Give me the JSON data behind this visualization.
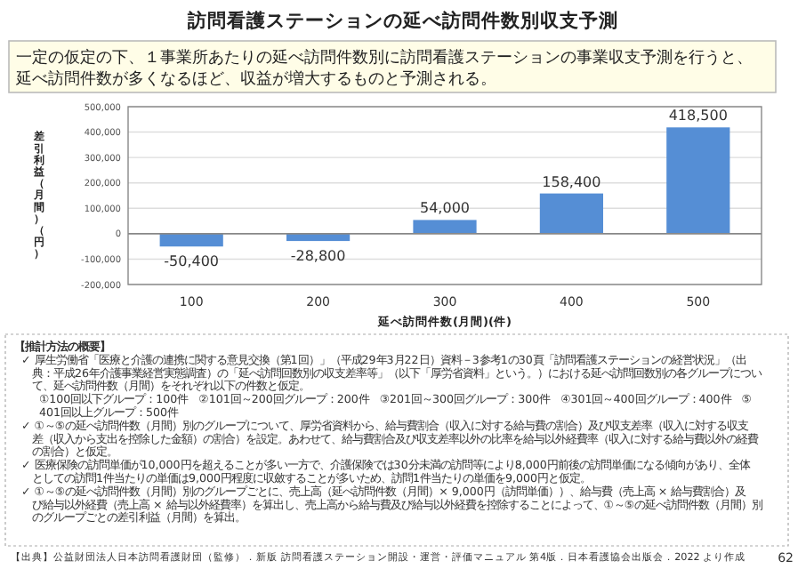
{
  "chart_data": {
    "type": "bar",
    "title": "訪問看護ステーションの延べ訪問件数別収支予測",
    "subtitle": "一定の仮定の下、１事業所あたりの延べ訪問件数別に訪問看護ステーションの事業収支予測を行うと、延べ訪問件数が多くなるほど、収益が増大するものと予測される。",
    "xlabel": "延べ訪問件数(月間)(件)",
    "ylabel": "差引利益（月間）（円）",
    "categories": [
      "100",
      "200",
      "300",
      "400",
      "500"
    ],
    "values": [
      -50400,
      -28800,
      54000,
      158400,
      418500
    ],
    "color": "#558ed5",
    "value_labels": [
      "-50,400",
      "-28,800",
      "54,000",
      "158,400",
      "418,500"
    ],
    "ylim": [
      -200000,
      500000
    ],
    "yticks": [
      {
        "value": -200000,
        "label": "-200,000"
      },
      {
        "value": -100000,
        "label": "-100,000"
      },
      0,
      {
        "value": 100000,
        "label": "100,000"
      },
      {
        "value": 200000,
        "label": "200,000"
      },
      {
        "value": 300000,
        "label": "300,000"
      },
      {
        "value": 400000,
        "label": "400,000"
      },
      {
        "value": 500000,
        "label": "500,000"
      }
    ],
    "grid": "y",
    "annotations": [
      "【推計方法の概要】",
      "✓ 厚生労働省「医療と介護の連携に関する意見交換（第1回）」（平成29年3月22日）資料－3参考1の30頁「訪問看護ステーションの経営状況」（出典：平成26年介護事業経営実態調査）の「延べ訪問回数別の収支差率等」（以下「厚労省資料」という。）における延べ訪問回数別の各グループについて、延べ訪問件数（月間）をそれぞれ以下の件数と仮定。",
      "①100回以下グループ：100件　②101回～200回グループ：200件　③201回～300回グループ：300件　④301回～400回グループ：400件　⑤401回以上グループ：500件",
      "✓ ①～⑤の延べ訪問件数（月間）別のグループについて、厚労省資料から、給与費割合（収入に対する給与費の割合）及び収支差率（収入に対する収支差（収入から支出を控除した金額）の割合）を設定。あわせて、給与費割合及び収支差率以外の比率を給与以外経費率（収入に対する給与費以外の経費の割合）と仮定。",
      "✓ 医療保険の訪問単価が10,000円を超えることが多い一方で、介護保険では30分未満の訪問等により8,000円前後の訪問単価になる傾向があり、全体としての訪問1件当たりの単価は9,000円程度に収斂することが多いため、訪問1件当たりの単価を9,000円と仮定。",
      "✓ ①～⑤の延べ訪問件数（月間）別のグループごとに、売上高（延べ訪問件数（月間）× 9,000円（訪問単価））、給与費（売上高 × 給与費割合）及び給与以外経費（売上高 × 給与以外経費率）を算出し、売上高から給与費及び給与以外経費を控除することによって、①～⑤の延べ訪問件数（月間）別のグループごとの差引利益（月間）を算出。",
      "【出典】公益財団法人日本訪問看護財団（監修）．新版 訪問看護ステーション開設・運営・評価マニュアル 第4版．日本看護協会出版会．2022 より作成",
      "62"
    ]
  }
}
